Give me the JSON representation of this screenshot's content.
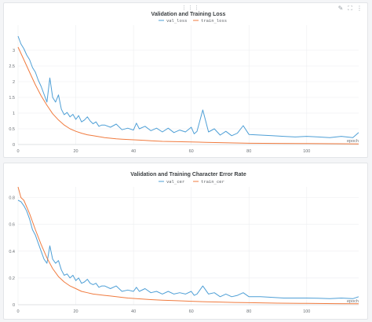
{
  "chart_data": [
    {
      "type": "line",
      "title": "Validation and Training Loss",
      "xlabel": "epoch",
      "ylabel": "",
      "xlim": [
        0,
        118
      ],
      "ylim": [
        0,
        3.8
      ],
      "yticks": [
        0,
        0.5,
        1,
        1.5,
        2,
        2.5,
        3
      ],
      "ytick_labels": [
        "0",
        "0.5",
        "1",
        "1.5",
        "2",
        "2.5",
        "3"
      ],
      "xticks": [
        0,
        20,
        40,
        60,
        80,
        100
      ],
      "grid": true,
      "legend": "top-center",
      "series": [
        {
          "name": "val_loss",
          "color": "#4e9fd6",
          "x": [
            0,
            1,
            2,
            3,
            4,
            5,
            6,
            7,
            8,
            9,
            10,
            11,
            12,
            13,
            14,
            15,
            16,
            17,
            18,
            19,
            20,
            21,
            22,
            23,
            24,
            25,
            26,
            27,
            28,
            29,
            30,
            32,
            34,
            36,
            38,
            40,
            41,
            42,
            44,
            46,
            48,
            50,
            52,
            54,
            56,
            58,
            60,
            61,
            62,
            64,
            66,
            68,
            70,
            72,
            74,
            76,
            78,
            80,
            84,
            88,
            92,
            96,
            100,
            104,
            108,
            112,
            116,
            118
          ],
          "y": [
            3.45,
            3.2,
            3.05,
            2.85,
            2.7,
            2.45,
            2.3,
            2.05,
            1.85,
            1.6,
            1.35,
            2.12,
            1.5,
            1.35,
            1.58,
            1.12,
            0.95,
            1.02,
            0.88,
            0.96,
            0.8,
            0.92,
            0.72,
            0.78,
            0.88,
            0.75,
            0.66,
            0.72,
            0.58,
            0.62,
            0.62,
            0.55,
            0.65,
            0.47,
            0.52,
            0.46,
            0.68,
            0.5,
            0.58,
            0.44,
            0.52,
            0.4,
            0.52,
            0.38,
            0.46,
            0.4,
            0.55,
            0.34,
            0.42,
            1.1,
            0.4,
            0.5,
            0.3,
            0.42,
            0.28,
            0.36,
            0.6,
            0.32,
            0.3,
            0.28,
            0.26,
            0.24,
            0.26,
            0.24,
            0.22,
            0.26,
            0.22,
            0.38
          ]
        },
        {
          "name": "train_loss",
          "color": "#f07b3f",
          "x": [
            0,
            2,
            4,
            6,
            8,
            10,
            12,
            14,
            16,
            18,
            20,
            22,
            24,
            26,
            28,
            30,
            32,
            34,
            36,
            38,
            40,
            42,
            44,
            46,
            48,
            50,
            55,
            60,
            65,
            70,
            75,
            80,
            90,
            100,
            110,
            118
          ],
          "y": [
            3.1,
            2.7,
            2.3,
            1.9,
            1.55,
            1.25,
            0.98,
            0.78,
            0.62,
            0.5,
            0.42,
            0.36,
            0.31,
            0.28,
            0.25,
            0.22,
            0.2,
            0.18,
            0.17,
            0.16,
            0.15,
            0.14,
            0.13,
            0.12,
            0.11,
            0.1,
            0.09,
            0.08,
            0.07,
            0.06,
            0.05,
            0.04,
            0.035,
            0.03,
            0.025,
            0.02
          ]
        }
      ]
    },
    {
      "type": "line",
      "title": "Validation and Training Character Error Rate",
      "xlabel": "epoch",
      "ylabel": "",
      "xlim": [
        0,
        118
      ],
      "ylim": [
        0,
        0.88
      ],
      "yticks": [
        0,
        0.2,
        0.4,
        0.6,
        0.8
      ],
      "ytick_labels": [
        "0",
        "0.2",
        "0.4",
        "0.6",
        "0.8"
      ],
      "xticks": [
        0,
        20,
        40,
        60,
        80,
        100
      ],
      "grid": true,
      "legend": "top-center",
      "series": [
        {
          "name": "val_cer",
          "color": "#4e9fd6",
          "x": [
            0,
            1,
            2,
            3,
            4,
            5,
            6,
            7,
            8,
            9,
            10,
            11,
            12,
            13,
            14,
            15,
            16,
            17,
            18,
            19,
            20,
            21,
            22,
            23,
            24,
            25,
            26,
            27,
            28,
            29,
            30,
            32,
            34,
            36,
            38,
            40,
            41,
            42,
            44,
            46,
            48,
            50,
            52,
            54,
            56,
            58,
            60,
            61,
            62,
            64,
            66,
            68,
            70,
            72,
            74,
            76,
            78,
            80,
            84,
            88,
            92,
            96,
            100,
            104,
            108,
            112,
            116,
            118
          ],
          "y": [
            0.78,
            0.77,
            0.74,
            0.7,
            0.64,
            0.56,
            0.52,
            0.46,
            0.4,
            0.34,
            0.31,
            0.44,
            0.34,
            0.31,
            0.33,
            0.26,
            0.22,
            0.23,
            0.2,
            0.22,
            0.18,
            0.2,
            0.16,
            0.17,
            0.19,
            0.16,
            0.15,
            0.16,
            0.13,
            0.14,
            0.14,
            0.12,
            0.14,
            0.1,
            0.11,
            0.1,
            0.13,
            0.1,
            0.12,
            0.09,
            0.1,
            0.08,
            0.1,
            0.08,
            0.09,
            0.08,
            0.1,
            0.07,
            0.08,
            0.14,
            0.08,
            0.09,
            0.06,
            0.08,
            0.06,
            0.07,
            0.09,
            0.06,
            0.06,
            0.055,
            0.05,
            0.05,
            0.05,
            0.048,
            0.046,
            0.05,
            0.045,
            0.06
          ]
        },
        {
          "name": "train_cer",
          "color": "#f07b3f",
          "x": [
            0,
            1,
            2,
            4,
            6,
            8,
            10,
            12,
            14,
            16,
            18,
            20,
            22,
            24,
            26,
            28,
            30,
            32,
            34,
            36,
            38,
            40,
            42,
            44,
            46,
            48,
            50,
            55,
            60,
            65,
            70,
            75,
            80,
            90,
            100,
            110,
            118
          ],
          "y": [
            0.88,
            0.8,
            0.78,
            0.68,
            0.56,
            0.45,
            0.35,
            0.27,
            0.21,
            0.17,
            0.14,
            0.12,
            0.1,
            0.09,
            0.08,
            0.075,
            0.07,
            0.065,
            0.06,
            0.055,
            0.05,
            0.047,
            0.044,
            0.041,
            0.038,
            0.036,
            0.034,
            0.03,
            0.026,
            0.022,
            0.02,
            0.017,
            0.015,
            0.012,
            0.01,
            0.008,
            0.007
          ]
        }
      ]
    }
  ]
}
